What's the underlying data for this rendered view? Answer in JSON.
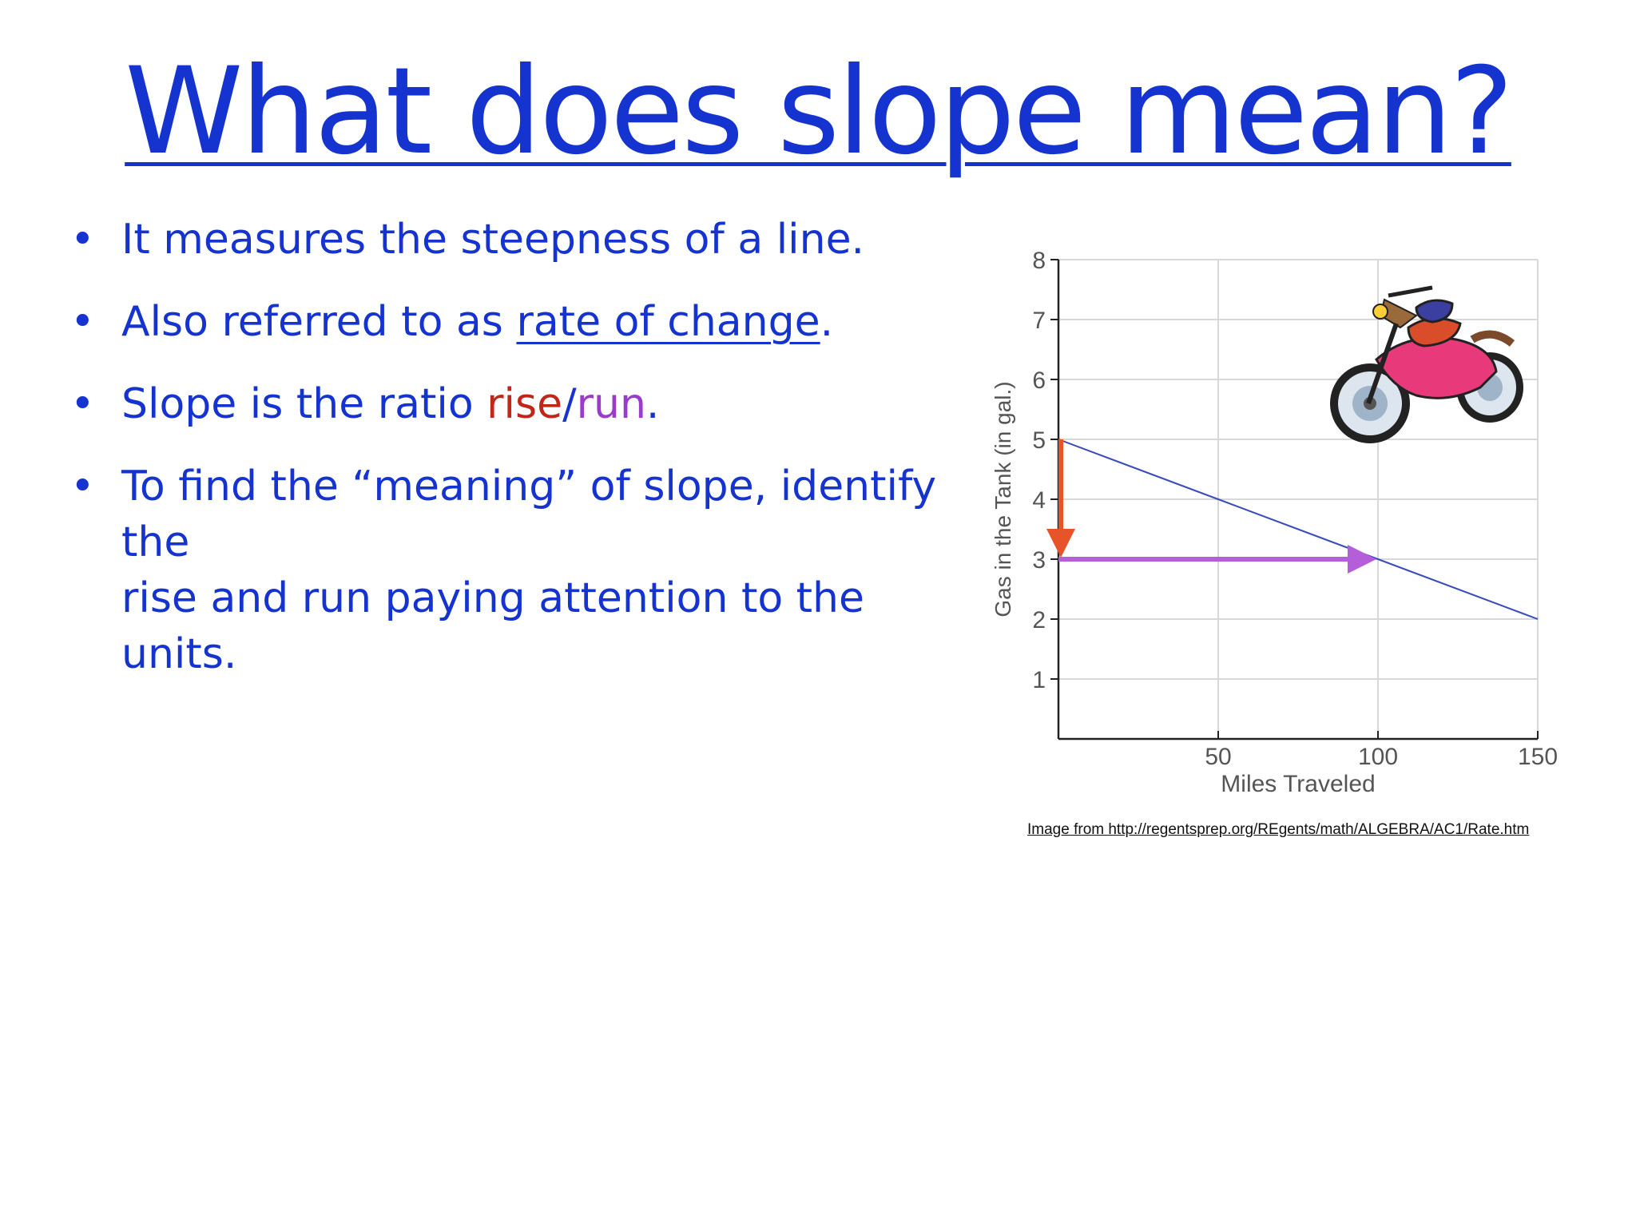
{
  "title": "What does slope mean?",
  "bullets": [
    {
      "parts": [
        {
          "text": "It measures the steepness of a line."
        }
      ]
    },
    {
      "parts": [
        {
          "text": "Also referred to as "
        },
        {
          "text": "rate of change",
          "underline": true
        },
        {
          "text": "."
        }
      ]
    },
    {
      "parts": [
        {
          "text": "Slope is the ratio "
        },
        {
          "text": "rise",
          "color": "#c0261a"
        },
        {
          "text": "/"
        },
        {
          "text": "run",
          "color": "#9a3bc9"
        },
        {
          "text": "."
        }
      ]
    },
    {
      "parts": [
        {
          "text": "To find the “meaning” of slope, identify the\nrise and run paying attention to the units."
        }
      ]
    }
  ],
  "credit": "Image from http://regentsprep.org/REgents/math/ALGEBRA/AC1/Rate.htm",
  "colors": {
    "text": "#1533cf",
    "rise": "#e8542a",
    "run": "#b45ed9",
    "line": "#3b4bb8"
  },
  "chart_data": {
    "type": "line",
    "title": "",
    "xlabel": "Miles Traveled",
    "ylabel": "Gas in the Tank  (in gal.)",
    "xlim": [
      0,
      150
    ],
    "ylim": [
      0,
      8
    ],
    "xticks": [
      50,
      100,
      150
    ],
    "yticks": [
      1,
      2,
      3,
      4,
      5,
      6,
      7,
      8
    ],
    "grid": true,
    "series": [
      {
        "x": [
          0,
          150
        ],
        "y": [
          5,
          2
        ]
      }
    ],
    "annotations": [
      {
        "kind": "rise-arrow",
        "from": [
          0,
          5
        ],
        "to": [
          0,
          3
        ]
      },
      {
        "kind": "run-arrow",
        "from": [
          0,
          3
        ],
        "to": [
          100,
          3
        ]
      }
    ],
    "illustration": "motorcycle-icon"
  }
}
